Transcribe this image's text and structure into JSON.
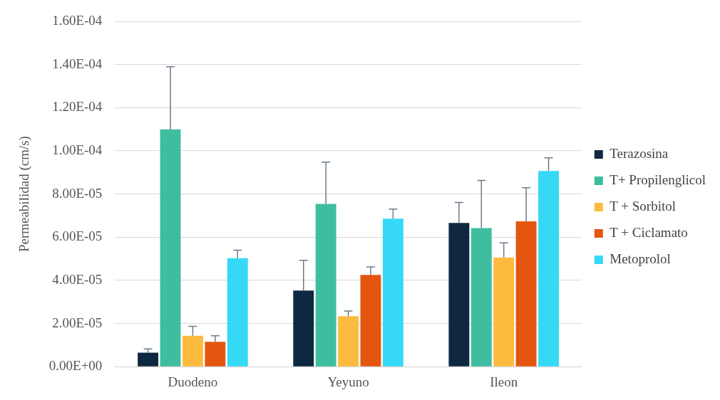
{
  "chart_data": {
    "type": "bar",
    "ylabel": "Permeabilidad (cm/s)",
    "categories": [
      "Duodeno",
      "Yeyuno",
      "Ileon"
    ],
    "series": [
      {
        "name": "Terazosina",
        "color": "#0e2841",
        "values": [
          6.5e-06,
          3.53e-05,
          6.66e-05
        ],
        "errors": [
          [
            6.5e-06,
            8.2e-06
          ],
          [
            3.53e-05,
            4.93e-05
          ],
          [
            6.66e-05,
            7.61e-05
          ]
        ]
      },
      {
        "name": "T+ Propilenglicol",
        "color": "#3fbd9f",
        "values": [
          0.00011,
          7.54e-05,
          6.42e-05
        ],
        "errors": [
          [
            0.00011,
            0.000139
          ],
          [
            7.54e-05,
            9.48e-05
          ],
          [
            6.42e-05,
            8.63e-05
          ]
        ]
      },
      {
        "name": "T + Sorbitol",
        "color": "#fcbb3f",
        "values": [
          1.43e-05,
          2.34e-05,
          5.06e-05
        ],
        "errors": [
          [
            1.43e-05,
            1.87e-05
          ],
          [
            2.34e-05,
            2.58e-05
          ],
          [
            5.06e-05,
            5.74e-05
          ]
        ]
      },
      {
        "name": "T + Ciclamato",
        "color": "#e4560f",
        "values": [
          1.15e-05,
          4.25e-05,
          6.73e-05
        ],
        "errors": [
          [
            1.15e-05,
            1.43e-05
          ],
          [
            4.25e-05,
            4.62e-05
          ],
          [
            6.73e-05,
            8.29e-05
          ]
        ]
      },
      {
        "name": "Metoprolol",
        "color": "#35d9f5",
        "values": [
          5.03e-05,
          6.86e-05,
          9.07e-05
        ],
        "errors": [
          [
            5.03e-05,
            5.4e-05
          ],
          [
            6.86e-05,
            7.3e-05
          ],
          [
            9.07e-05,
            9.68e-05
          ]
        ]
      }
    ],
    "ylim": [
      0,
      0.00016
    ],
    "yticks": [
      {
        "value": 0,
        "label": "0.00E+00"
      },
      {
        "value": 2e-05,
        "label": "2.00E-05"
      },
      {
        "value": 4e-05,
        "label": "4.00E-05"
      },
      {
        "value": 6e-05,
        "label": "6.00E-05"
      },
      {
        "value": 8e-05,
        "label": "8.00E-05"
      },
      {
        "value": 0.0001,
        "label": "1.00E-04"
      },
      {
        "value": 0.00012,
        "label": "1.20E-04"
      },
      {
        "value": 0.00014,
        "label": "1.40E-04"
      },
      {
        "value": 0.00016,
        "label": "1.60E-04"
      }
    ],
    "grid": "y",
    "legend": "right"
  }
}
